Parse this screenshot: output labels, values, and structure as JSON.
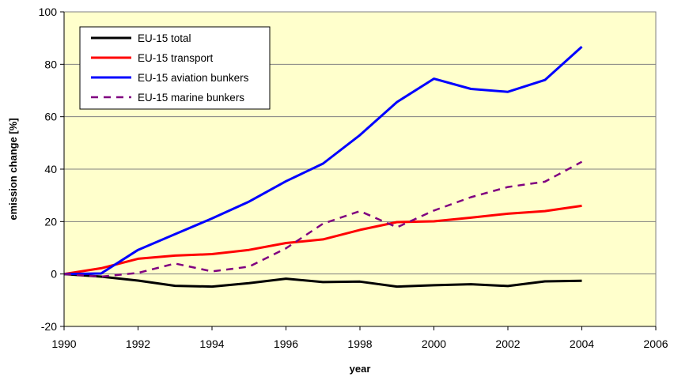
{
  "chart_data": {
    "type": "line",
    "title": "",
    "xlabel": "year",
    "ylabel": "emission change [%]",
    "xlim": [
      1990,
      2006
    ],
    "ylim": [
      -20,
      100
    ],
    "x_ticks": [
      "1990",
      "1992",
      "1994",
      "1996",
      "1998",
      "2000",
      "2002",
      "2004",
      "2006"
    ],
    "y_ticks": [
      "-20",
      "0",
      "20",
      "40",
      "60",
      "80",
      "100"
    ],
    "grid": "horizontal",
    "legend_position": "top-left",
    "plot_background": "#ffffcc",
    "x": [
      1990,
      1991,
      1992,
      1993,
      1994,
      1995,
      1996,
      1997,
      1998,
      1999,
      2000,
      2001,
      2002,
      2003,
      2004
    ],
    "series": [
      {
        "name": "EU-15 total",
        "color": "#000000",
        "dash": "solid",
        "values": [
          0,
          -1,
          -2.5,
          -4.5,
          -4.8,
          -3.5,
          -1.8,
          -3.1,
          -2.9,
          -4.8,
          -4.3,
          -3.9,
          -4.6,
          -2.8,
          -2.6
        ]
      },
      {
        "name": "EU-15 transport",
        "color": "#ff0000",
        "dash": "solid",
        "values": [
          0,
          2.2,
          5.8,
          7.0,
          7.6,
          9.2,
          11.8,
          13.2,
          16.8,
          19.8,
          20.1,
          21.5,
          23.0,
          24.0,
          26.0
        ]
      },
      {
        "name": "EU-15 aviation bunkers",
        "color": "#0000ff",
        "dash": "solid",
        "values": [
          0,
          0.2,
          9.2,
          15.2,
          21.2,
          27.6,
          35.4,
          42.1,
          53.0,
          65.6,
          74.5,
          70.6,
          69.5,
          74.0,
          86.7
        ]
      },
      {
        "name": "EU-15 marine bunkers",
        "color": "#800080",
        "dash": "dashed",
        "values": [
          0,
          -1,
          0.4,
          4.0,
          1.0,
          2.8,
          9.8,
          19.2,
          24.0,
          17.8,
          24.2,
          29.3,
          33.2,
          35.2,
          42.8
        ]
      }
    ]
  }
}
